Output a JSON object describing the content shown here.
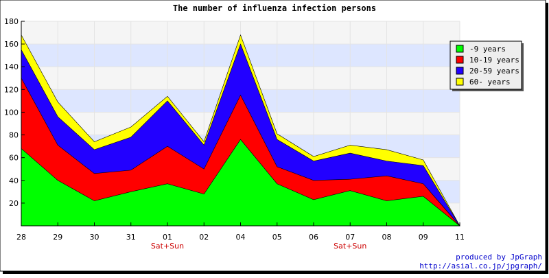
{
  "chart_data": {
    "type": "area",
    "stacked": true,
    "title": "The number of influenza infection persons",
    "categories": [
      "28",
      "29",
      "30",
      "31",
      "01",
      "02",
      "04",
      "05",
      "06",
      "07",
      "08",
      "09",
      "11"
    ],
    "category_sublabels": [
      "",
      "",
      "",
      "",
      "Sat+Sun",
      "",
      "",
      "",
      "",
      "Sat+Sun",
      "",
      "",
      ""
    ],
    "ylim": [
      0,
      180
    ],
    "yticks": [
      20,
      40,
      60,
      80,
      100,
      120,
      140,
      160,
      180
    ],
    "grid": true,
    "legend_position": "top-right",
    "series": [
      {
        "name": "-9 years",
        "color": "#00ff00",
        "values": [
          68,
          40,
          22,
          30,
          37,
          28,
          76,
          37,
          23,
          31,
          22,
          26,
          0
        ]
      },
      {
        "name": "10-19 years",
        "color": "#ff0000",
        "values": [
          62,
          31,
          24,
          19,
          33,
          22,
          39,
          15,
          17,
          10,
          22,
          11,
          0
        ]
      },
      {
        "name": "20-59 years",
        "color": "#2200ff",
        "values": [
          25,
          25,
          21,
          29,
          40,
          21,
          45,
          24,
          17,
          23,
          13,
          16,
          0
        ]
      },
      {
        "name": "60- years",
        "color": "#ffff00",
        "values": [
          13,
          13,
          7,
          9,
          4,
          3,
          8,
          5,
          4,
          7,
          10,
          5,
          0
        ]
      }
    ]
  },
  "footer": {
    "line1": "produced by JpGraph",
    "line2": "http://asial.co.jp/jpgraph/"
  }
}
